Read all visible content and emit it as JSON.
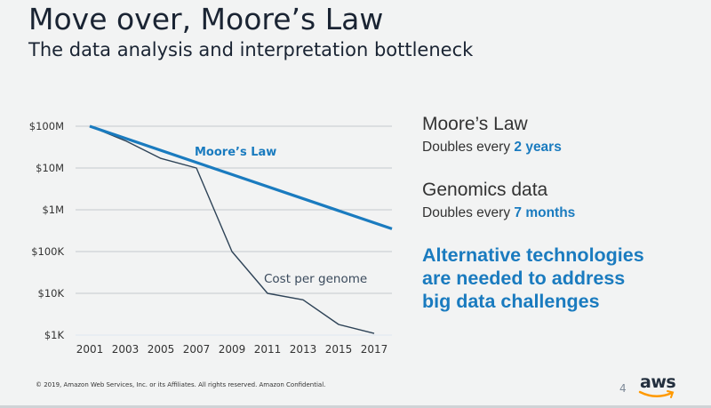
{
  "slide": {
    "title": "Move over, Moore’s Law",
    "subtitle": "The data analysis and interpretation bottleneck",
    "page_number": "4",
    "footer": "© 2019, Amazon Web Services, Inc. or its Affiliates. All rights reserved. Amazon Confidential.",
    "logo_text": "aws"
  },
  "panel": {
    "moore": {
      "heading": "Moore’s Law",
      "prefix": "Doubles every ",
      "highlight": "2 years"
    },
    "genomics": {
      "heading": "Genomics data",
      "prefix": "Doubles every ",
      "highlight": "7 months"
    },
    "callout": [
      "Alternative technologies",
      "are needed to address",
      "big data challenges"
    ]
  },
  "colors": {
    "accent": "#1a7bbf",
    "genome_line": "#2e4357",
    "grid": "#c4c8cc",
    "aws_smile": "#ff9900"
  },
  "chart_data": {
    "type": "line",
    "title": "",
    "xlabel": "",
    "ylabel": "",
    "yscale": "log",
    "ylim": [
      1000,
      100000000
    ],
    "xlim": [
      2001,
      2018
    ],
    "grid": true,
    "x_ticks": [
      2001,
      2003,
      2005,
      2007,
      2009,
      2011,
      2013,
      2015,
      2017
    ],
    "x_tick_labels": [
      "2001",
      "2003",
      "2005",
      "2007",
      "2009",
      "2011",
      "2013",
      "2015",
      "2017"
    ],
    "y_ticks": [
      100000000,
      10000000,
      1000000,
      100000,
      10000,
      1000
    ],
    "y_tick_labels": [
      "$100M",
      "$10M",
      "$1M",
      "$100K",
      "$10K",
      "$1K"
    ],
    "series": [
      {
        "name": "Moore’s Law",
        "label": "Moore’s Law",
        "x": [
          2001,
          2018
        ],
        "y": [
          100000000,
          350000
        ]
      },
      {
        "name": "Cost per genome",
        "label": "Cost per genome",
        "x": [
          2001,
          2003,
          2005,
          2007,
          2009,
          2011,
          2013,
          2015,
          2017
        ],
        "y": [
          100000000,
          45000000,
          17000000,
          10000000,
          100000,
          10000,
          7000,
          1800,
          1100
        ]
      }
    ]
  }
}
